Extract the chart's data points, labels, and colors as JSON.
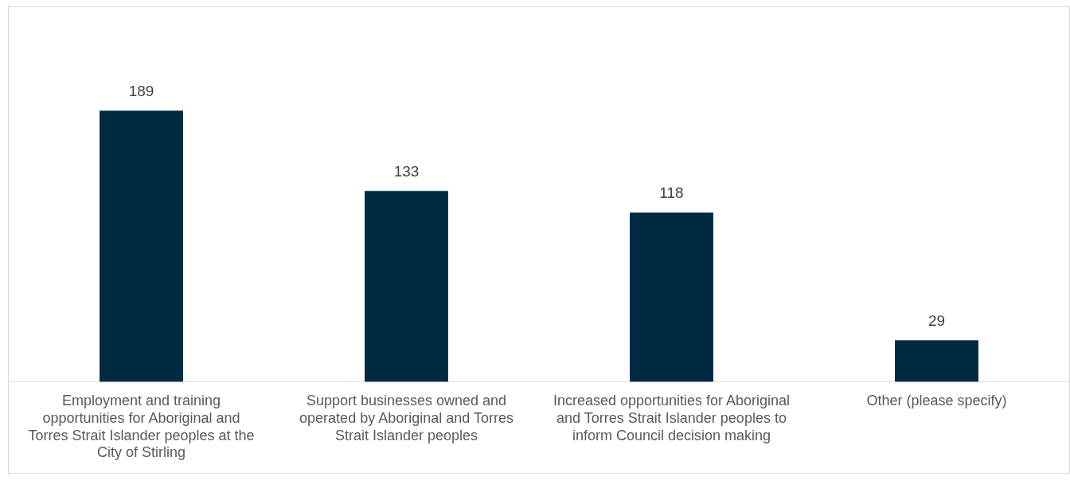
{
  "chart_data": {
    "type": "bar",
    "categories": [
      "Employment and training opportunities for Aboriginal and Torres Strait Islander peoples at the City of Stirling",
      "Support businesses owned and operated by Aboriginal and Torres Strait Islander peoples",
      "Increased opportunities for Aboriginal and Torres Strait Islander peoples to inform Council decision making",
      "Other (please specify)"
    ],
    "values": [
      189,
      133,
      118,
      29
    ],
    "color": "#002a42",
    "data_labels": true,
    "grid": false,
    "legend": false
  }
}
